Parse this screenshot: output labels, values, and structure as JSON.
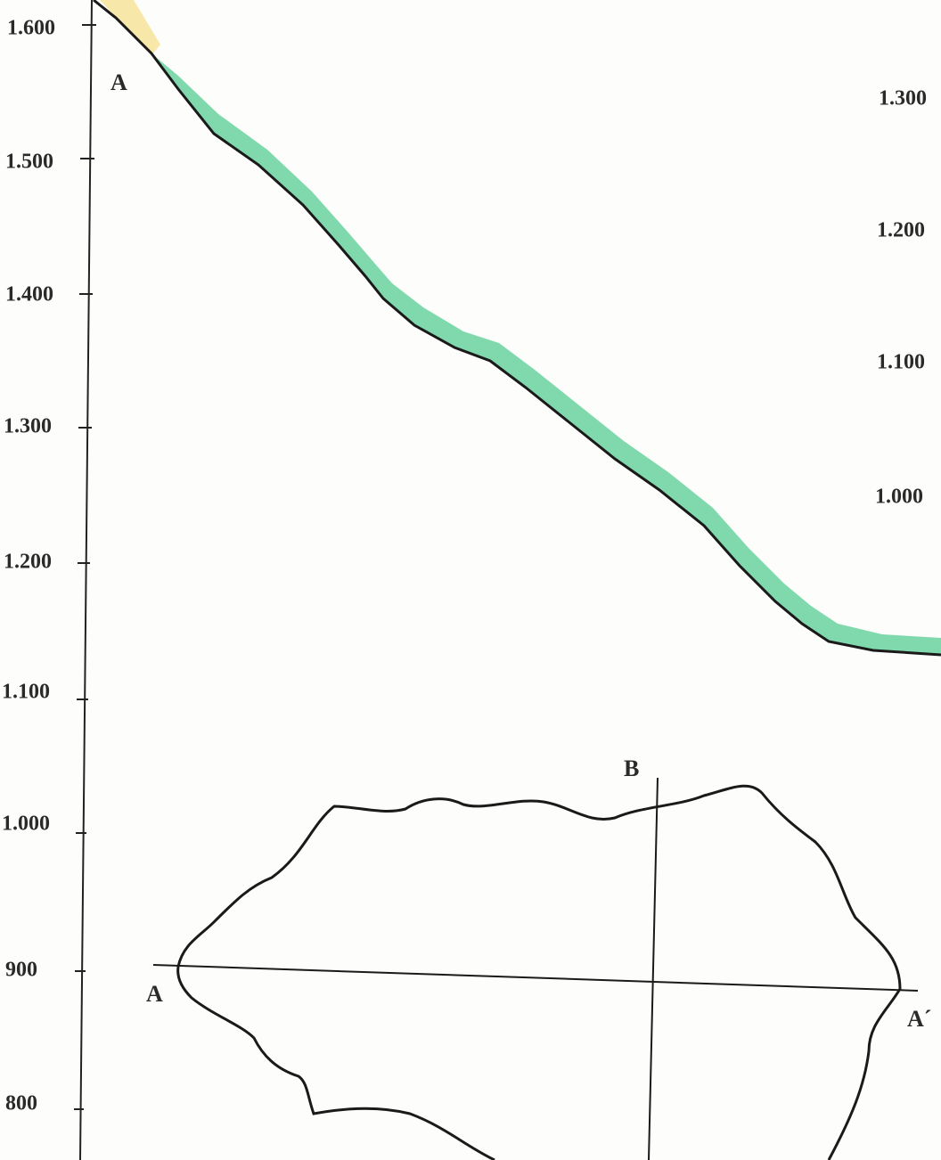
{
  "left_axis": {
    "labels": [
      "1.600",
      "1.500",
      "1.400",
      "1.300",
      "1.200",
      "1.100",
      "1.000",
      "900",
      "800"
    ]
  },
  "right_axis": {
    "labels": [
      "1.300",
      "1.200",
      "1.100",
      "1.000"
    ]
  },
  "points": {
    "profile_start": "A",
    "section_b": "B",
    "map_a": "A",
    "map_a_prime": "A´"
  }
}
